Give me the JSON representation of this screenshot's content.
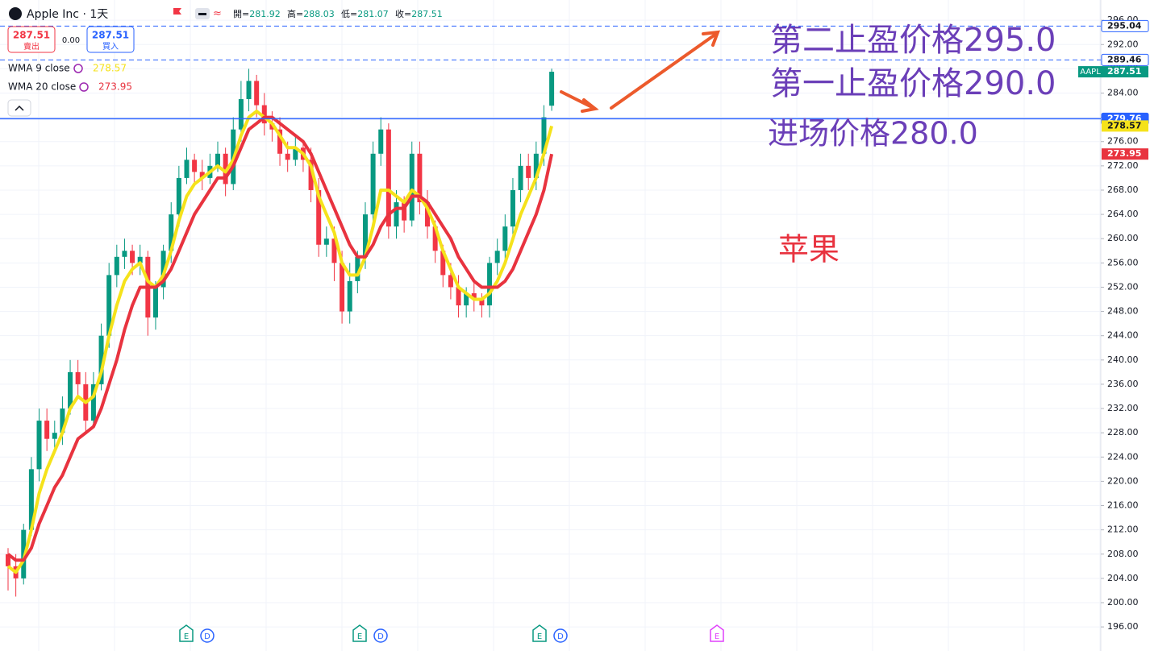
{
  "header": {
    "symbol": "Apple Inc · 1天",
    "ohlc": [
      {
        "label": "開=",
        "value": 281.92
      },
      {
        "label": "高=",
        "value": 288.03
      },
      {
        "label": "低=",
        "value": 281.07
      },
      {
        "label": "收=",
        "value": 287.51
      }
    ],
    "sell": {
      "price": 287.51,
      "label": "賣出"
    },
    "spread": "0.00",
    "buy": {
      "price": 287.51,
      "label": "買入"
    }
  },
  "chart_data": {
    "type": "candlestick",
    "open": [
      208,
      206,
      204,
      212,
      222,
      230,
      227,
      228,
      232,
      238,
      236,
      230,
      236,
      244,
      254,
      257,
      258,
      256,
      257,
      247,
      252,
      258,
      264,
      270,
      273,
      271,
      270,
      272,
      274,
      269,
      278,
      283,
      286,
      282,
      279,
      278,
      274,
      273,
      275,
      273,
      268,
      259,
      260,
      256,
      248,
      253,
      257,
      264,
      274,
      278,
      262,
      266,
      263,
      274,
      266,
      262,
      258,
      254,
      252,
      249,
      251,
      250,
      249,
      256,
      258,
      262,
      268,
      272,
      270,
      274,
      281.92
    ],
    "high": [
      209,
      208,
      213,
      224,
      232,
      232,
      230,
      234,
      240,
      240,
      238,
      238,
      246,
      256,
      259,
      260,
      259,
      259,
      258,
      253,
      259,
      266,
      272,
      275,
      274,
      273,
      274,
      276,
      275,
      280,
      286,
      288,
      287,
      284,
      281,
      280,
      276,
      277,
      276,
      275,
      270,
      262,
      262,
      258,
      256,
      258,
      266,
      276,
      280,
      279,
      268,
      267,
      276,
      276,
      268,
      263,
      259,
      256,
      254,
      252,
      253,
      251,
      257,
      260,
      264,
      270,
      274,
      274,
      276,
      282,
      288.03
    ],
    "low": [
      202,
      201,
      203,
      211,
      220,
      225,
      225,
      226,
      231,
      234,
      228,
      229,
      235,
      242,
      252,
      255,
      254,
      254,
      244,
      245,
      250,
      256,
      262,
      269,
      269,
      268,
      269,
      271,
      267,
      268,
      276,
      281,
      280,
      277,
      276,
      272,
      271,
      272,
      271,
      266,
      257,
      257,
      253,
      246,
      246,
      251,
      255,
      262,
      272,
      260,
      260,
      261,
      262,
      264,
      260,
      256,
      252,
      250,
      247,
      247,
      248,
      247,
      247,
      254,
      256,
      260,
      266,
      268,
      268,
      272,
      281.07
    ],
    "close": [
      206,
      204,
      212,
      222,
      230,
      227,
      228,
      232,
      238,
      236,
      230,
      236,
      244,
      254,
      257,
      258,
      256,
      257,
      247,
      252,
      258,
      264,
      270,
      273,
      271,
      270,
      272,
      274,
      269,
      278,
      283,
      286,
      282,
      279,
      278,
      274,
      273,
      275,
      273,
      268,
      259,
      260,
      256,
      248,
      253,
      257,
      264,
      274,
      278,
      262,
      266,
      263,
      274,
      266,
      262,
      258,
      254,
      252,
      249,
      251,
      250,
      249,
      256,
      258,
      262,
      268,
      272,
      270,
      274,
      280,
      287.51
    ],
    "up_color": "#089981",
    "down_color": "#f23645",
    "series": [
      {
        "name": "WMA 9 close",
        "color": "#f5e21b",
        "values": [
          206,
          205,
          207,
          212,
          218,
          222,
          225,
          228,
          232,
          234,
          233,
          234,
          238,
          244,
          249,
          253,
          255,
          256,
          253,
          252,
          254,
          258,
          263,
          267,
          269,
          270,
          271,
          272,
          271,
          273,
          277,
          280,
          281,
          280,
          279,
          277,
          275,
          275,
          274,
          272,
          267,
          264,
          261,
          256,
          254,
          254,
          257,
          262,
          268,
          268,
          267,
          266,
          268,
          267,
          265,
          262,
          258,
          255,
          252,
          251,
          250,
          250,
          251,
          253,
          256,
          260,
          264,
          267,
          270,
          274,
          278.57
        ]
      },
      {
        "name": "WMA 20 close",
        "color": "#e8333f",
        "values": [
          208,
          207,
          207,
          209,
          213,
          216,
          219,
          221,
          224,
          227,
          228,
          229,
          232,
          236,
          240,
          245,
          249,
          252,
          252,
          252,
          253,
          255,
          258,
          261,
          264,
          266,
          268,
          270,
          270,
          272,
          275,
          278,
          279,
          280,
          280,
          279,
          278,
          277,
          276,
          274,
          271,
          268,
          265,
          262,
          259,
          257,
          257,
          259,
          262,
          264,
          265,
          265,
          267,
          267,
          266,
          264,
          262,
          260,
          257,
          255,
          253,
          252,
          252,
          252,
          253,
          255,
          258,
          261,
          264,
          268,
          273.95
        ]
      }
    ],
    "ylim": [
      192.03,
      299.34
    ],
    "yticks": [
      {
        "value": 196,
        "label": "196.00"
      },
      {
        "value": 200,
        "label": "200.00"
      },
      {
        "value": 204,
        "label": "204.00"
      },
      {
        "value": 208,
        "label": "208.00"
      },
      {
        "value": 212,
        "label": "212.00"
      },
      {
        "value": 216,
        "label": "216.00"
      },
      {
        "value": 220,
        "label": "220.00"
      },
      {
        "value": 224,
        "label": "224.00"
      },
      {
        "value": 228,
        "label": "228.00"
      },
      {
        "value": 232,
        "label": "232.00"
      },
      {
        "value": 236,
        "label": "236.00"
      },
      {
        "value": 240,
        "label": "240.00"
      },
      {
        "value": 244,
        "label": "244.00"
      },
      {
        "value": 248,
        "label": "248.00"
      },
      {
        "value": 252,
        "label": "252.00"
      },
      {
        "value": 256,
        "label": "256.00"
      },
      {
        "value": 260,
        "label": "260.00"
      },
      {
        "value": 264,
        "label": "264.00"
      },
      {
        "value": 268,
        "label": "268.00"
      },
      {
        "value": 272,
        "label": "272.00"
      },
      {
        "value": 276,
        "label": "276.00"
      },
      {
        "value": 280,
        "label": "280.00"
      },
      {
        "value": 284,
        "label": "284.00"
      },
      {
        "value": 288,
        "label": "288.00"
      },
      {
        "value": 292,
        "label": "292.00"
      },
      {
        "value": 296,
        "label": "296.00"
      }
    ],
    "price_lines": [
      {
        "value": 295.04,
        "label": "295.04",
        "dashed": true
      },
      {
        "value": 289.46,
        "label": "289.46",
        "dashed": true
      },
      {
        "value": 279.76,
        "label": "279.76",
        "dashed": false
      }
    ],
    "last_price_symbol": "AAPL",
    "annotations": [
      {
        "text": "第二止盈价格295.0",
        "color": "#6b3fb8"
      },
      {
        "text": "第一止盈价格290.0",
        "color": "#6b3fb8"
      },
      {
        "text": "进场价格280.0",
        "color": "#6b3fb8"
      },
      {
        "text": "苹果",
        "color": "#e8333f"
      }
    ],
    "events": [
      "E",
      "D",
      "E",
      "D",
      "E",
      "D",
      "E"
    ],
    "grid": true
  }
}
